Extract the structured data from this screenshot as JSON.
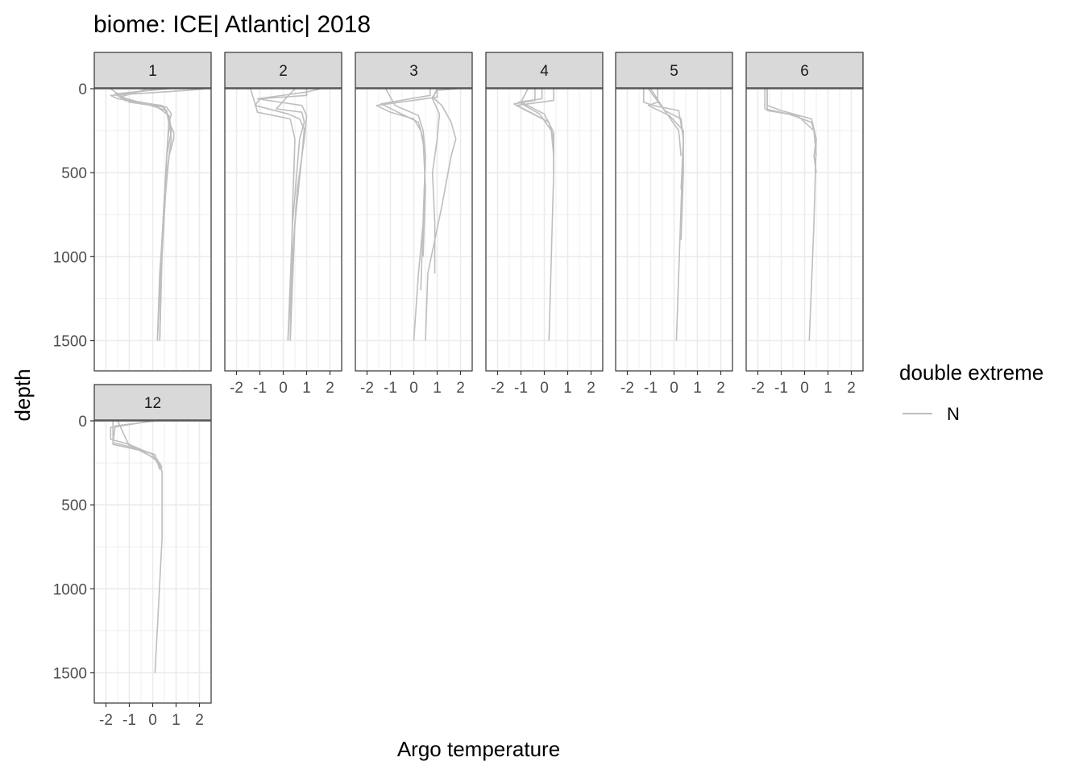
{
  "chart_data": {
    "type": "line",
    "title": "biome: ICE| Atlantic| 2018",
    "xlabel": "Argo temperature",
    "ylabel": "depth",
    "xlim": [
      -2.5,
      2.5
    ],
    "ylim": [
      0,
      1680
    ],
    "y_reversed": true,
    "x_ticks": [
      -2,
      -1,
      0,
      1,
      2
    ],
    "x_tick_labels": [
      "-2",
      "-1",
      "0",
      "1",
      "2"
    ],
    "y_ticks": [
      0,
      500,
      1000,
      1500
    ],
    "y_tick_labels": [
      "0",
      "500",
      "1000",
      "1500"
    ],
    "grid": true,
    "line_color": "#bebebe",
    "strip_fill": "#d9d9d9",
    "legend": {
      "title": "double extreme",
      "position": "right",
      "entries": [
        "N"
      ]
    },
    "panels": [
      {
        "label": "1",
        "profiles": [
          {
            "t": [
              2.3,
              1.5,
              -1.8,
              -1.5,
              -0.5,
              0.6,
              0.8,
              0.7,
              0.9,
              0.9,
              0.7,
              0.5,
              0.3,
              0.2
            ],
            "d": [
              0,
              10,
              40,
              60,
              80,
              110,
              150,
              200,
              260,
              300,
              400,
              700,
              1100,
              1500
            ]
          },
          {
            "t": [
              0.7,
              -1.6,
              -1.2,
              0.4,
              0.6,
              0.7,
              0.8,
              0.6,
              0.4,
              0.3
            ],
            "d": [
              0,
              30,
              70,
              100,
              140,
              200,
              300,
              500,
              1000,
              1500
            ]
          },
          {
            "t": [
              -0.2,
              -1.4,
              -0.3,
              0.6,
              0.7,
              0.6,
              0.4,
              0.3
            ],
            "d": [
              0,
              50,
              90,
              130,
              220,
              400,
              900,
              1500
            ]
          },
          {
            "t": [
              -1.8,
              -1.0,
              0.5,
              0.7,
              0.6,
              0.4,
              0.3
            ],
            "d": [
              0,
              80,
              110,
              180,
              400,
              900,
              1500
            ]
          },
          {
            "t": [
              0.2,
              -1.5,
              -1.1,
              0.2,
              0.7,
              0.8,
              0.6,
              0.4,
              0.2
            ],
            "d": [
              0,
              40,
              60,
              110,
              160,
              250,
              400,
              900,
              1500
            ]
          }
        ]
      },
      {
        "label": "2",
        "profiles": [
          {
            "t": [
              1.6,
              1.0,
              -1.1,
              0.8,
              1.0,
              0.9,
              0.6,
              0.4,
              0.2
            ],
            "d": [
              0,
              20,
              60,
              100,
              160,
              300,
              600,
              1000,
              1500
            ]
          },
          {
            "t": [
              1.0,
              1.0,
              -1.0,
              -1.2,
              0.2,
              0.7,
              0.9,
              0.8,
              0.5,
              0.3
            ],
            "d": [
              0,
              40,
              60,
              100,
              150,
              180,
              240,
              400,
              800,
              1500
            ]
          },
          {
            "t": [
              -1.4,
              -1.1,
              0.3,
              0.5,
              0.4,
              0.3
            ],
            "d": [
              0,
              140,
              180,
              300,
              700,
              1500
            ]
          },
          {
            "t": [
              0.5,
              -0.3,
              0.8,
              0.9,
              0.7,
              0.4,
              0.2
            ],
            "d": [
              0,
              120,
              140,
              200,
              300,
              800,
              1500
            ]
          }
        ]
      },
      {
        "label": "3",
        "profiles": [
          {
            "t": [
              1.9,
              1.0,
              0.8,
              1.2,
              1.6,
              1.8,
              1.6,
              1.2,
              0.9,
              0.6,
              0.5
            ],
            "d": [
              0,
              10,
              50,
              100,
              200,
              300,
              400,
              700,
              900,
              1100,
              1500
            ]
          },
          {
            "t": [
              1.0,
              1.0,
              -1.6,
              -1.0,
              0.0,
              0.3,
              0.5,
              0.4,
              0.2,
              0.0
            ],
            "d": [
              0,
              50,
              100,
              140,
              180,
              250,
              400,
              800,
              1100,
              1500
            ]
          },
          {
            "t": [
              0.7,
              0.7,
              -1.4,
              0.2,
              0.4,
              0.5,
              0.4
            ],
            "d": [
              0,
              40,
              90,
              200,
              300,
              600,
              1000
            ]
          },
          {
            "t": [
              -1.2,
              -0.8,
              0.2,
              0.4,
              0.5,
              0.4,
              0.3
            ],
            "d": [
              0,
              100,
              160,
              250,
              400,
              800,
              1200
            ]
          },
          {
            "t": [
              1.0,
              0.8,
              1.1,
              1.0,
              0.8,
              0.9,
              0.9
            ],
            "d": [
              0,
              60,
              150,
              300,
              500,
              800,
              1100
            ]
          }
        ]
      },
      {
        "label": "4",
        "profiles": [
          {
            "t": [
              0.4,
              0.4,
              -1.2,
              0.2,
              0.4,
              0.4,
              0.3,
              0.2
            ],
            "d": [
              0,
              70,
              100,
              200,
              300,
              500,
              1000,
              1500
            ]
          },
          {
            "t": [
              -0.4,
              -0.4,
              -1.3,
              -0.6,
              0.2,
              0.4,
              0.4
            ],
            "d": [
              0,
              70,
              90,
              140,
              200,
              300,
              500
            ]
          },
          {
            "t": [
              -0.1,
              -0.1,
              -1.1,
              -0.2,
              0.3,
              0.4
            ],
            "d": [
              0,
              60,
              80,
              150,
              250,
              400
            ]
          },
          {
            "t": [
              -0.7,
              -1.0,
              0.0,
              0.4,
              0.4
            ],
            "d": [
              0,
              80,
              150,
              260,
              400
            ]
          }
        ]
      },
      {
        "label": "5",
        "profiles": [
          {
            "t": [
              -1.3,
              -1.3,
              -0.9,
              0.2,
              0.4,
              0.3,
              0.1
            ],
            "d": [
              0,
              80,
              100,
              130,
              300,
              700,
              1500
            ]
          },
          {
            "t": [
              -0.7,
              -0.7,
              -1.1,
              -0.2,
              0.4,
              0.4,
              0.3
            ],
            "d": [
              0,
              80,
              100,
              160,
              250,
              500,
              900
            ]
          },
          {
            "t": [
              -1.0,
              -0.4,
              0.3,
              0.4,
              0.3
            ],
            "d": [
              0,
              130,
              180,
              300,
              600
            ]
          },
          {
            "t": [
              -1.1,
              -0.3,
              0.2,
              0.3
            ],
            "d": [
              0,
              150,
              250,
              400
            ]
          }
        ]
      },
      {
        "label": "6",
        "profiles": [
          {
            "t": [
              -1.6,
              -1.6,
              -1.0,
              0.3,
              0.5,
              0.4,
              0.2
            ],
            "d": [
              0,
              100,
              130,
              180,
              300,
              800,
              1500
            ]
          },
          {
            "t": [
              -1.7,
              -1.7,
              -0.7,
              0.3,
              0.5,
              0.4,
              0.5
            ],
            "d": [
              0,
              120,
              150,
              200,
              300,
              400,
              500
            ]
          },
          {
            "t": [
              -1.6,
              -1.6,
              -0.3,
              0.4,
              0.5
            ],
            "d": [
              0,
              130,
              160,
              250,
              400
            ]
          }
        ]
      },
      {
        "label": "12",
        "profiles": [
          {
            "t": [
              0.0,
              -1.8,
              -1.8,
              -1.0,
              0.0,
              0.4,
              0.4,
              0.1
            ],
            "d": [
              0,
              40,
              110,
              140,
              200,
              300,
              700,
              1500
            ]
          },
          {
            "t": [
              0.1,
              -1.6,
              -1.7,
              -0.8,
              0.2,
              0.4
            ],
            "d": [
              0,
              30,
              130,
              160,
              230,
              300
            ]
          },
          {
            "t": [
              -1.7,
              -1.7,
              -0.4,
              0.3,
              0.4
            ],
            "d": [
              0,
              140,
              180,
              250,
              280
            ]
          },
          {
            "t": [
              -1.5,
              -1.0,
              0.1,
              0.3
            ],
            "d": [
              0,
              150,
              200,
              290
            ]
          }
        ]
      }
    ]
  }
}
